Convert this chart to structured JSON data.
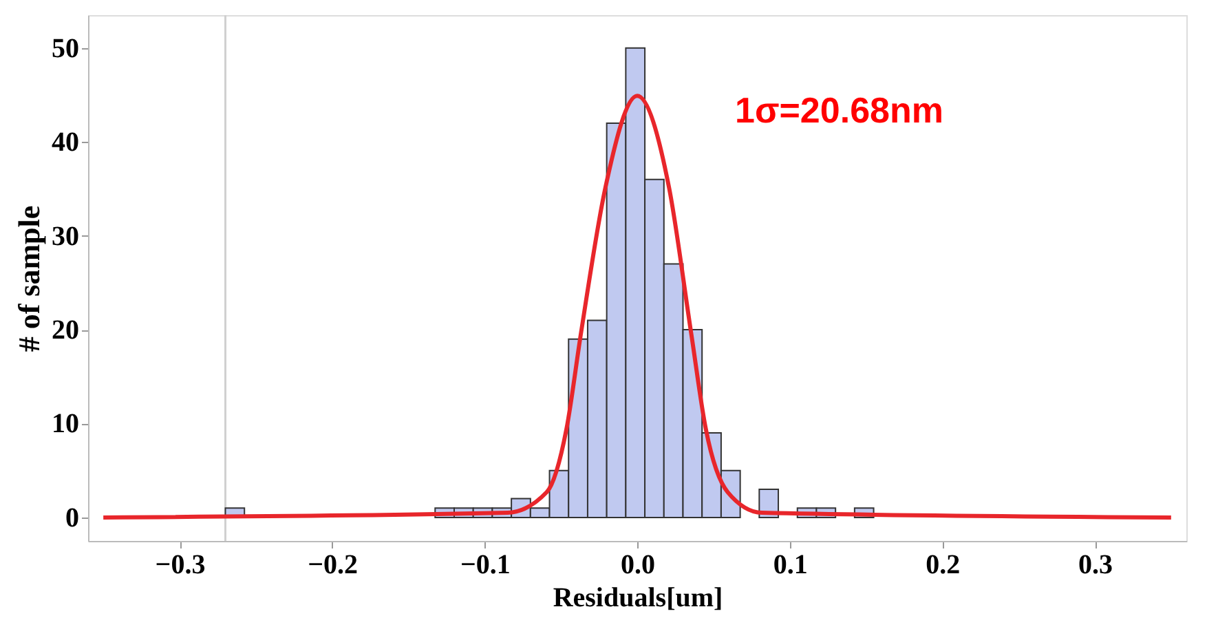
{
  "chart_data": {
    "type": "histogram",
    "xlabel": "Residuals[um]",
    "ylabel": "# of sample",
    "bins": [
      -0.27,
      -0.2575,
      -0.245,
      -0.2325,
      -0.22,
      -0.2075,
      -0.195,
      -0.1825,
      -0.17,
      -0.1575,
      -0.145,
      -0.1325,
      -0.12,
      -0.1075,
      -0.095,
      -0.0825,
      -0.07,
      -0.0575,
      -0.045,
      -0.0325,
      -0.02,
      -0.0075,
      0.005,
      0.0175,
      0.03,
      0.0425,
      0.055,
      0.0675,
      0.08,
      0.0925,
      0.105,
      0.1175,
      0.13,
      0.1425,
      0.155
    ],
    "values": [
      1,
      0,
      0,
      0,
      0,
      0,
      0,
      0,
      0,
      0,
      0,
      1,
      1,
      1,
      1,
      2,
      1,
      5,
      19,
      21,
      42,
      50,
      36,
      27,
      20,
      9,
      5,
      0,
      3,
      0,
      1,
      1,
      0,
      1
    ],
    "color": "#c0c9f0",
    "series": [
      {
        "type": "line",
        "color": "#e8262b",
        "x": [
          -0.35,
          -0.085,
          -0.0593,
          -0.0464,
          -0.0368,
          -0.0209,
          0,
          0.0209,
          0.0353,
          0.045,
          0.0593,
          0.0817,
          0.35
        ],
        "values": [
          0,
          0.5,
          2.7,
          9.4,
          19.7,
          35.1,
          44.9,
          35.1,
          19.7,
          9.4,
          2.7,
          0.5,
          0
        ]
      }
    ],
    "ref_lines": [
      {
        "axis": "x",
        "value": -0.27,
        "color": "#d0d0d0"
      }
    ],
    "annotations": [
      "1σ=20.68nm"
    ],
    "xlim": [
      -0.36,
      0.36
    ],
    "xticks": [
      {
        "value": -0.3,
        "label": "−0.3"
      },
      {
        "value": -0.2,
        "label": "−0.2"
      },
      {
        "value": -0.1,
        "label": "−0.1"
      },
      {
        "value": 0,
        "label": "0.0"
      },
      0.1,
      0.2,
      0.3
    ],
    "ylim": [
      -2.5,
      53.5
    ],
    "yticks": [
      0,
      10,
      20,
      30,
      40,
      50
    ],
    "grid": false
  }
}
